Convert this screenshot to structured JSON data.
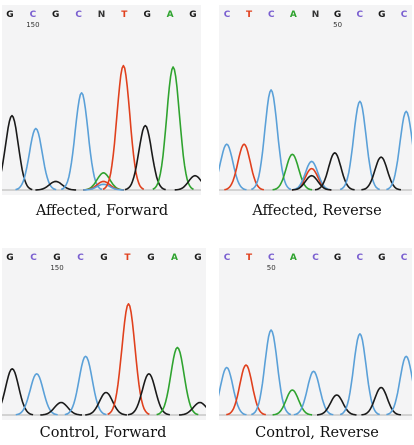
{
  "colors": {
    "G": "#1a1a1a",
    "C": "#5aa0d8",
    "A": "#2fa32f",
    "T": "#e0401d",
    "N": "#333333",
    "label_C": "#7a5fd0"
  },
  "panels": [
    {
      "id": "affected-forward",
      "caption": "Affected, Forward",
      "bases": [
        "G",
        "C",
        "G",
        "C",
        "N",
        "T",
        "G",
        "A",
        "G"
      ],
      "position_label": {
        "text": "150",
        "after_base_index": 1
      },
      "peaks": [
        {
          "base": "G",
          "x": 0.05,
          "h": 0.52
        },
        {
          "base": "C",
          "x": 0.17,
          "h": 0.43
        },
        {
          "base": "G",
          "x": 0.27,
          "h": 0.06
        },
        {
          "base": "C",
          "x": 0.4,
          "h": 0.68
        },
        {
          "base": "A",
          "x": 0.51,
          "h": 0.12
        },
        {
          "base": "T",
          "x": 0.51,
          "h": 0.06
        },
        {
          "base": "C",
          "x": 0.51,
          "h": 0.04
        },
        {
          "base": "T",
          "x": 0.61,
          "h": 0.87
        },
        {
          "base": "G",
          "x": 0.72,
          "h": 0.45
        },
        {
          "base": "A",
          "x": 0.86,
          "h": 0.86
        },
        {
          "base": "G",
          "x": 0.97,
          "h": 0.1
        }
      ]
    },
    {
      "id": "affected-reverse",
      "caption": "Affected, Reverse",
      "bases": [
        "C",
        "T",
        "C",
        "A",
        "N",
        "G",
        "C",
        "G",
        "C"
      ],
      "position_label": {
        "text": "50",
        "after_base_index": 5
      },
      "peaks": [
        {
          "base": "C",
          "x": 0.04,
          "h": 0.32
        },
        {
          "base": "T",
          "x": 0.13,
          "h": 0.32
        },
        {
          "base": "C",
          "x": 0.27,
          "h": 0.7
        },
        {
          "base": "A",
          "x": 0.38,
          "h": 0.25
        },
        {
          "base": "T",
          "x": 0.48,
          "h": 0.15
        },
        {
          "base": "C",
          "x": 0.48,
          "h": 0.2
        },
        {
          "base": "G",
          "x": 0.48,
          "h": 0.1
        },
        {
          "base": "G",
          "x": 0.6,
          "h": 0.26
        },
        {
          "base": "C",
          "x": 0.73,
          "h": 0.62
        },
        {
          "base": "G",
          "x": 0.84,
          "h": 0.23
        },
        {
          "base": "C",
          "x": 0.97,
          "h": 0.55
        }
      ]
    },
    {
      "id": "control-forward",
      "caption": "Control, Forward",
      "bases": [
        "G",
        "C",
        "G",
        "C",
        "G",
        "T",
        "G",
        "A",
        "G"
      ],
      "position_label": {
        "text": "150",
        "after_base_index": 2
      },
      "peaks": [
        {
          "base": "G",
          "x": 0.05,
          "h": 0.37
        },
        {
          "base": "C",
          "x": 0.17,
          "h": 0.33
        },
        {
          "base": "G",
          "x": 0.29,
          "h": 0.1
        },
        {
          "base": "C",
          "x": 0.41,
          "h": 0.47
        },
        {
          "base": "G",
          "x": 0.51,
          "h": 0.18
        },
        {
          "base": "T",
          "x": 0.62,
          "h": 0.89
        },
        {
          "base": "G",
          "x": 0.72,
          "h": 0.33
        },
        {
          "base": "A",
          "x": 0.86,
          "h": 0.54
        },
        {
          "base": "G",
          "x": 0.97,
          "h": 0.1
        }
      ]
    },
    {
      "id": "control-reverse",
      "caption": "Control, Reverse",
      "bases": [
        "C",
        "T",
        "C",
        "A",
        "C",
        "G",
        "C",
        "G",
        "C"
      ],
      "position_label": {
        "text": "50",
        "after_base_index": 2
      },
      "peaks": [
        {
          "base": "C",
          "x": 0.04,
          "h": 0.38
        },
        {
          "base": "T",
          "x": 0.14,
          "h": 0.4
        },
        {
          "base": "C",
          "x": 0.27,
          "h": 0.68
        },
        {
          "base": "A",
          "x": 0.38,
          "h": 0.2
        },
        {
          "base": "C",
          "x": 0.49,
          "h": 0.35
        },
        {
          "base": "G",
          "x": 0.61,
          "h": 0.16
        },
        {
          "base": "C",
          "x": 0.73,
          "h": 0.65
        },
        {
          "base": "G",
          "x": 0.84,
          "h": 0.22
        },
        {
          "base": "C",
          "x": 0.97,
          "h": 0.47
        }
      ]
    }
  ]
}
